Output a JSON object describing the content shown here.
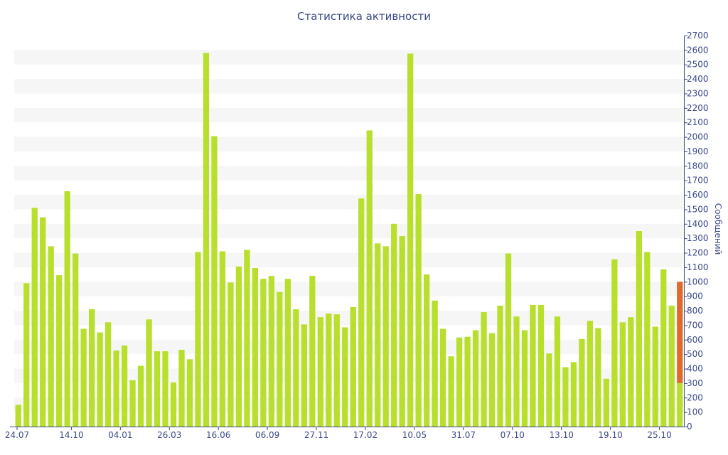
{
  "chart_data": {
    "type": "bar",
    "title": "Статистика активности",
    "ylabel": "Сообщений",
    "xlabel": "",
    "ylim": [
      0,
      2700
    ],
    "y_ticks": [
      0,
      100,
      200,
      300,
      400,
      500,
      600,
      700,
      800,
      900,
      1000,
      1100,
      1200,
      1300,
      1400,
      1500,
      1600,
      1700,
      1800,
      1900,
      2000,
      2100,
      2200,
      2300,
      2400,
      2500,
      2600,
      2700
    ],
    "x_tick_labels": [
      {
        "label": "24.07",
        "index": 0
      },
      {
        "label": "14.10",
        "index": 6.5
      },
      {
        "label": "04.01",
        "index": 12.5
      },
      {
        "label": "26.03",
        "index": 18.5
      },
      {
        "label": "16.06",
        "index": 24.5
      },
      {
        "label": "06.09",
        "index": 30.5
      },
      {
        "label": "27.11",
        "index": 36.5
      },
      {
        "label": "17.02",
        "index": 42.5
      },
      {
        "label": "10.05",
        "index": 48.5
      },
      {
        "label": "31.07",
        "index": 54.5
      },
      {
        "label": "07.10",
        "index": 60.5
      },
      {
        "label": "13.10",
        "index": 66.5
      },
      {
        "label": "19.10",
        "index": 72.5
      },
      {
        "label": "25.10",
        "index": 78.5
      }
    ],
    "values": [
      150,
      990,
      1510,
      1445,
      1245,
      1045,
      1625,
      1195,
      675,
      810,
      650,
      720,
      525,
      560,
      320,
      420,
      740,
      520,
      520,
      305,
      530,
      465,
      1205,
      2580,
      2005,
      1210,
      995,
      1105,
      1220,
      1095,
      1020,
      1040,
      930,
      1020,
      810,
      705,
      1040,
      755,
      780,
      775,
      685,
      825,
      1575,
      2045,
      1265,
      1245,
      1400,
      1315,
      2575,
      1605,
      1050,
      870,
      675,
      485,
      615,
      620,
      665,
      790,
      645,
      835,
      1195,
      760,
      665,
      840,
      840,
      505,
      760,
      410,
      445,
      605,
      730,
      680,
      330,
      1155,
      720,
      755,
      1350,
      1205,
      690,
      1085,
      835,
      1000
    ],
    "stacked_last": {
      "base": 300,
      "top": 1000
    },
    "grid": "horizontal-bands",
    "colors": {
      "bar": "#b7df2b",
      "highlight": "#e06a2c",
      "band": "#f6f6f6",
      "text": "#3b4a88",
      "axis": "#3b4a88"
    }
  }
}
